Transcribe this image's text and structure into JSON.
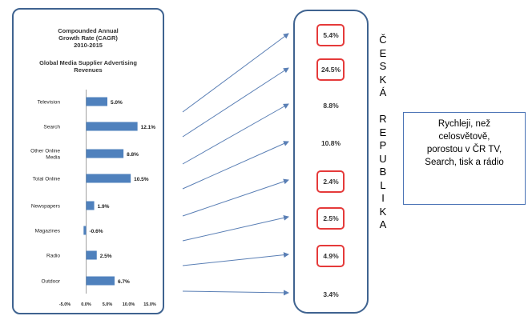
{
  "chart_data": {
    "type": "bar",
    "orientation": "horizontal",
    "title_lines": [
      "Compounded Annual",
      "Growth Rate (CAGR)",
      "2010-2015"
    ],
    "subtitle_lines": [
      "Global Media Supplier Advertising",
      "Revenues"
    ],
    "categories": [
      "Television",
      "Search",
      "Other Online Media",
      "Total Online",
      "Newspapers",
      "Magazines",
      "Radio",
      "Outdoor"
    ],
    "category_lines": [
      [
        "Television"
      ],
      [
        "Search"
      ],
      [
        "Other Online",
        "Media"
      ],
      [
        "Total Online"
      ],
      [
        "Newspapers"
      ],
      [
        "Magazines"
      ],
      [
        "Radio"
      ],
      [
        "Outdoor"
      ]
    ],
    "values": [
      5.0,
      12.1,
      8.8,
      10.5,
      1.9,
      -0.6,
      2.5,
      6.7
    ],
    "value_labels": [
      "5.0%",
      "12.1%",
      "8.8%",
      "10.5%",
      "1.9%",
      "-0.6%",
      "2.5%",
      "6.7%"
    ],
    "xlim": [
      -5,
      15
    ],
    "ticks": [
      -5,
      0,
      5,
      10,
      15
    ],
    "tick_labels": [
      "-5.0%",
      "0.0%",
      "5.0%",
      "10.0%",
      "15.0%"
    ],
    "bar_color": "#4f81bd",
    "grid": false
  },
  "czech": {
    "values": [
      "5.4%",
      "24.5%",
      "8.8%",
      "10.8%",
      "2.4%",
      "2.5%",
      "4.9%",
      "3.4%"
    ],
    "highlighted": [
      true,
      true,
      false,
      false,
      true,
      true,
      true,
      false
    ],
    "highlight_color": "#e53a3a"
  },
  "vertical_label": [
    "Č",
    "E",
    "S",
    "K",
    "Á",
    "",
    "R",
    "E",
    "P",
    "U",
    "B",
    "L",
    "I",
    "K",
    "A"
  ],
  "callout": {
    "lines": [
      "Rychleji, než",
      "celosvětově,",
      "porostou v ČR TV,",
      "Search, tisk a rádio"
    ]
  },
  "colors": {
    "panel_border": "#3f6390",
    "arrow": "#5a7fb5",
    "callout_border": "#4a73b5"
  }
}
